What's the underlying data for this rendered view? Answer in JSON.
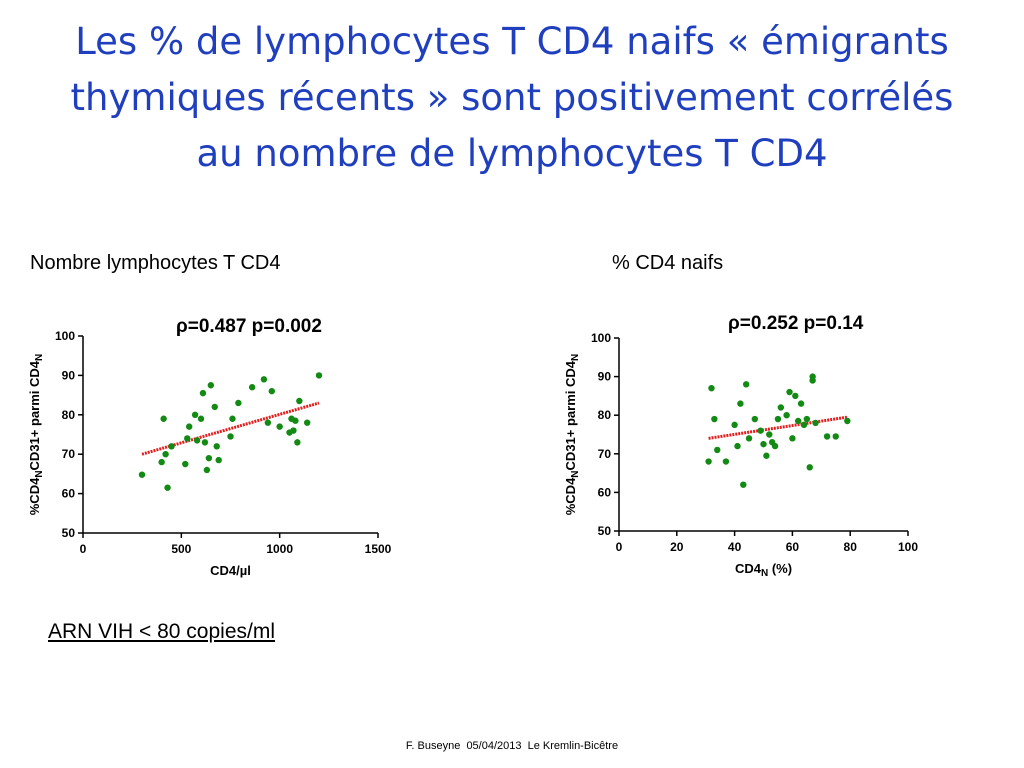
{
  "title": {
    "line1": "Les % de lymphocytes T CD4 naifs « émigrants",
    "line2": "thymiques récents » sont positivement corrélés",
    "line3": "au nombre de lymphocytes T CD4"
  },
  "left_label": "Nombre lymphocytes T CD4",
  "right_label": "% CD4 naifs",
  "footnote": "ARN VIH < 80 copies/ml",
  "footer": "F. Buseyne  05/04/2013  Le Kremlin-Bicêtre",
  "colors": {
    "title": "#1f3fbf",
    "points": "#138a13",
    "fit": "#e02020"
  },
  "chart_data": [
    {
      "type": "scatter",
      "stats": "ρ=0.487 p=0.002",
      "xlabel": "CD4/µl",
      "ylabel": {
        "prefix": "%CD4",
        "sub": "N",
        "middle": "CD31+ parmi CD4",
        "sub2": "N"
      },
      "xlim": [
        0,
        1500
      ],
      "ylim": [
        50,
        100
      ],
      "xticks": [
        0,
        500,
        1000,
        1500
      ],
      "yticks": [
        50,
        60,
        70,
        80,
        90,
        100
      ],
      "fit": {
        "x": [
          300,
          1200
        ],
        "y": [
          70,
          83
        ]
      },
      "x": [
        300,
        400,
        410,
        420,
        430,
        450,
        520,
        530,
        540,
        570,
        580,
        600,
        610,
        620,
        630,
        640,
        650,
        670,
        680,
        690,
        750,
        760,
        790,
        860,
        920,
        940,
        960,
        1000,
        1050,
        1060,
        1070,
        1080,
        1090,
        1100,
        1140,
        1200
      ],
      "y": [
        64.8,
        68,
        79,
        70,
        61.5,
        72,
        67.5,
        74,
        77,
        80,
        73.5,
        79,
        85.5,
        73,
        66,
        69,
        87.5,
        82,
        72,
        68.5,
        74.5,
        79,
        83,
        87,
        89,
        78,
        86,
        77,
        75.5,
        79,
        76,
        78.5,
        73,
        83.5,
        78,
        90
      ]
    },
    {
      "type": "scatter",
      "stats": "ρ=0.252 p=0.14",
      "xlabel": {
        "main": "CD4",
        "sub": "N",
        "rest": " (%)"
      },
      "ylabel": {
        "prefix": "%CD4",
        "sub": "N",
        "middle": "CD31+ parmi CD4",
        "sub2": "N"
      },
      "xlim": [
        0,
        100
      ],
      "ylim": [
        50,
        100
      ],
      "xticks": [
        0,
        20,
        40,
        60,
        80,
        100
      ],
      "yticks": [
        50,
        60,
        70,
        80,
        90,
        100
      ],
      "fit": {
        "x": [
          31,
          79
        ],
        "y": [
          74,
          79.5
        ]
      },
      "x": [
        31,
        32,
        33,
        34,
        37,
        40,
        41,
        42,
        43,
        44,
        45,
        47,
        49,
        50,
        51,
        52,
        53,
        54,
        55,
        56,
        58,
        59,
        60,
        61,
        62,
        63,
        64,
        65,
        66,
        67,
        67,
        68,
        72,
        75,
        79
      ],
      "y": [
        68,
        87,
        79,
        71,
        68,
        77.5,
        72,
        83,
        62,
        88,
        74,
        79,
        76,
        72.5,
        69.5,
        75,
        73,
        72,
        79,
        82,
        80,
        86,
        74,
        85,
        78.5,
        83,
        77.5,
        79,
        66.5,
        90,
        89,
        78,
        74.5,
        74.5,
        78.5
      ]
    }
  ]
}
